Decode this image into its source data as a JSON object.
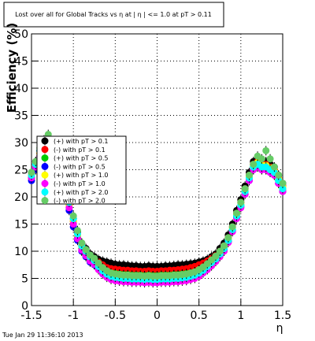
{
  "chart_data": {
    "type": "scatter",
    "title": "Lost over all for Global Tracks vs  η at | η | <= 1.0 at pT > 0.11",
    "xlabel": "η",
    "ylabel": "Efficiency (%)",
    "xlim": [
      -1.5,
      1.5
    ],
    "ylim": [
      0,
      50
    ],
    "x_ticks": [
      "-1.5",
      "-1",
      "-0.5",
      "0",
      "0.5",
      "1",
      "1.5"
    ],
    "y_ticks": [
      "0",
      "5",
      "10",
      "15",
      "20",
      "25",
      "30",
      "35",
      "40",
      "45",
      "50"
    ],
    "grid": true,
    "legend_position": "upper-left",
    "timestamp": "Tue Jan 29 11:36:10 2013",
    "x": [
      -1.5,
      -1.45,
      -1.4,
      -1.35,
      -1.3,
      -1.25,
      -1.2,
      -1.15,
      -1.1,
      -1.05,
      -1.0,
      -0.95,
      -0.9,
      -0.85,
      -0.8,
      -0.75,
      -0.7,
      -0.65,
      -0.6,
      -0.55,
      -0.5,
      -0.45,
      -0.4,
      -0.35,
      -0.3,
      -0.25,
      -0.2,
      -0.15,
      -0.1,
      -0.05,
      0.0,
      0.05,
      0.1,
      0.15,
      0.2,
      0.25,
      0.3,
      0.35,
      0.4,
      0.45,
      0.5,
      0.55,
      0.6,
      0.65,
      0.7,
      0.75,
      0.8,
      0.85,
      0.9,
      0.95,
      1.0,
      1.05,
      1.1,
      1.15,
      1.2,
      1.25,
      1.3,
      1.35,
      1.4,
      1.45,
      1.5
    ],
    "series": [
      {
        "name": "(+) with pT > 0.1",
        "color": "#000000",
        "values": [
          24.5,
          26.5,
          28.5,
          29.5,
          30,
          29,
          27.5,
          25,
          22,
          19,
          16,
          13.5,
          11.5,
          10.5,
          9.5,
          9,
          8.5,
          8.2,
          8,
          7.8,
          7.6,
          7.5,
          7.5,
          7.4,
          7.3,
          7.3,
          7.2,
          7.2,
          7.3,
          7.2,
          7.2,
          7.2,
          7.3,
          7.3,
          7.4,
          7.5,
          7.5,
          7.6,
          7.7,
          7.8,
          8,
          8.2,
          8.5,
          9,
          9.5,
          10.5,
          11.5,
          13,
          15,
          17.5,
          19.5,
          22,
          24.5,
          26.5,
          27,
          26.5,
          26.5,
          26,
          25.5,
          24,
          22.5
        ]
      },
      {
        "name": "(-) with pT > 0.1",
        "color": "#ff0000",
        "values": [
          24,
          26,
          28,
          29,
          29.5,
          28.5,
          27,
          24.5,
          21.5,
          18.5,
          15.5,
          13,
          11,
          10,
          9,
          8.5,
          8,
          7.5,
          7,
          6.8,
          6.7,
          6.6,
          6.5,
          6.5,
          6.4,
          6.4,
          6.3,
          6.3,
          6.4,
          6.3,
          6.3,
          6.4,
          6.4,
          6.5,
          6.5,
          6.6,
          6.7,
          6.8,
          7,
          7.2,
          7.5,
          7.8,
          8.2,
          8.7,
          9.2,
          10,
          11,
          12.5,
          14.5,
          17,
          19,
          21.5,
          24,
          26,
          26.5,
          26,
          26,
          25.5,
          25,
          23.5,
          22
        ]
      },
      {
        "name": "(+) with pT > 0.5",
        "color": "#00cc00",
        "values": [
          23.5,
          25.5,
          27.5,
          28.5,
          29,
          28,
          26.5,
          24,
          21,
          18,
          15,
          12.5,
          10.5,
          9.5,
          8.5,
          8,
          7.2,
          6.8,
          6.3,
          6,
          5.9,
          5.8,
          5.7,
          5.7,
          5.6,
          5.6,
          5.6,
          5.5,
          5.6,
          5.5,
          5.5,
          5.6,
          5.6,
          5.6,
          5.7,
          5.7,
          5.8,
          5.9,
          6,
          6.2,
          6.5,
          7,
          7.5,
          8,
          8.8,
          9.5,
          10.5,
          12,
          14,
          16.5,
          18.5,
          21,
          23.5,
          25.5,
          26,
          25.5,
          25.5,
          25,
          24.5,
          23,
          21.5
        ]
      },
      {
        "name": "(-) with pT > 0.5",
        "color": "#0000ff",
        "values": [
          23,
          25,
          27,
          28,
          28.5,
          27.5,
          26,
          23.5,
          20.5,
          17.5,
          14.5,
          12,
          10,
          9,
          8,
          7.5,
          6.8,
          6.2,
          5.8,
          5.4,
          5.2,
          5,
          4.9,
          4.9,
          4.8,
          4.8,
          4.8,
          4.7,
          4.8,
          4.7,
          4.7,
          4.8,
          4.8,
          4.8,
          4.9,
          4.9,
          5,
          5.2,
          5.4,
          5.6,
          6,
          6.5,
          7,
          7.6,
          8.3,
          9.2,
          10.2,
          11.8,
          13.8,
          16.2,
          18.2,
          20.5,
          23,
          25,
          25.5,
          25,
          25,
          24.5,
          24,
          22.5,
          21
        ]
      },
      {
        "name": "(+) with pT > 1.0",
        "color": "#ffff00",
        "values": [
          24,
          26,
          28,
          29,
          29.5,
          28.5,
          27,
          24.5,
          21.5,
          18.5,
          15.5,
          13,
          10.8,
          9.8,
          8.8,
          8.2,
          7.4,
          6.8,
          6.3,
          6,
          5.8,
          5.7,
          5.6,
          5.6,
          5.5,
          5.5,
          5.5,
          5.4,
          5.5,
          5.4,
          5.4,
          5.5,
          5.5,
          5.5,
          5.6,
          5.6,
          5.7,
          5.8,
          6,
          6.2,
          6.6,
          7,
          7.6,
          8.2,
          8.9,
          9.8,
          10.8,
          12.3,
          14.3,
          16.8,
          18.8,
          21.3,
          23.8,
          25.8,
          26.3,
          25.8,
          25.8,
          25.3,
          24.8,
          23.3,
          21.8
        ]
      },
      {
        "name": "(-) with pT > 1.0",
        "color": "#ff00ff",
        "values": [
          23.5,
          25.5,
          27.5,
          28.5,
          29,
          28,
          26.5,
          24,
          21,
          18,
          15,
          12.3,
          10.2,
          9.2,
          8.2,
          7.6,
          6.6,
          5.8,
          5.2,
          4.8,
          4.6,
          4.5,
          4.4,
          4.4,
          4.3,
          4.3,
          4.3,
          4.2,
          4.3,
          4.2,
          4.2,
          4.3,
          4.3,
          4.3,
          4.4,
          4.4,
          4.5,
          4.6,
          4.8,
          5,
          5.4,
          6,
          6.6,
          7.3,
          8.1,
          9,
          10,
          11.6,
          13.6,
          16,
          18,
          20.5,
          23,
          25,
          25.5,
          25,
          25,
          24.5,
          24,
          22.5,
          21
        ]
      },
      {
        "name": "(+) with pT > 2.0",
        "color": "#00ffff",
        "values": [
          24,
          26,
          28.5,
          29.5,
          30,
          29,
          27.5,
          25,
          22,
          19,
          16,
          13.2,
          11,
          10,
          9,
          8.3,
          7.2,
          6.4,
          5.8,
          5.4,
          5.2,
          5.1,
          5,
          5,
          4.9,
          4.9,
          4.9,
          4.8,
          4.9,
          4.8,
          4.8,
          4.9,
          4.9,
          4.9,
          5,
          5,
          5.1,
          5.2,
          5.4,
          5.6,
          6,
          6.5,
          7.2,
          7.9,
          8.6,
          9.5,
          10.5,
          12,
          14,
          16.5,
          18.5,
          21,
          23.5,
          25.5,
          26,
          25.5,
          25.5,
          25,
          24.5,
          23,
          21.5
        ]
      },
      {
        "name": "(-) with pT > 2.0",
        "color": "#66cc66",
        "values": [
          24.5,
          26.5,
          29,
          30.5,
          31.5,
          30,
          28,
          25.5,
          22.5,
          19.5,
          16.5,
          13.8,
          11.5,
          10.3,
          9.3,
          8.7,
          7.8,
          7,
          6.4,
          6,
          5.8,
          5.7,
          5.6,
          5.6,
          5.5,
          5.5,
          5.5,
          5.4,
          5.5,
          5.4,
          5.4,
          5.5,
          5.5,
          5.5,
          5.6,
          5.6,
          5.7,
          5.8,
          6,
          6.2,
          6.6,
          7.1,
          7.7,
          8.4,
          9.1,
          10,
          11,
          12.5,
          14.5,
          17,
          19,
          21.5,
          24,
          26,
          27.5,
          27,
          28.5,
          27,
          25.5,
          24,
          22.5
        ]
      }
    ]
  }
}
